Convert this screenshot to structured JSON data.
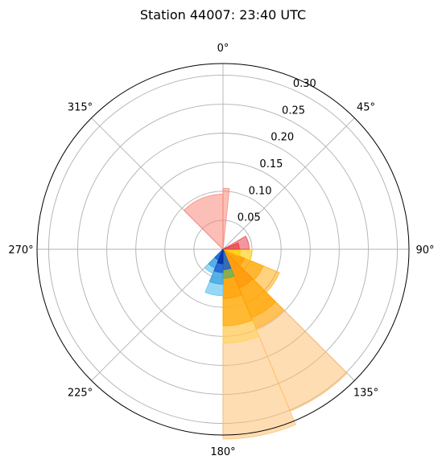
{
  "chart_data": {
    "type": "polar-bar",
    "title": "Station 44007: 23:40 UTC",
    "theta_direction": "clockwise",
    "theta_zero": "north",
    "theta_ticks": [
      0,
      45,
      90,
      135,
      180,
      225,
      270,
      315
    ],
    "theta_tick_labels": [
      "0°",
      "45°",
      "90°",
      "135°",
      "180°",
      "225°",
      "270°",
      "315°"
    ],
    "r_ticks": [
      0.05,
      0.1,
      0.15,
      0.2,
      0.25,
      0.3
    ],
    "r_tick_labels": [
      "0.05",
      "0.10",
      "0.15",
      "0.20",
      "0.25",
      "0.30"
    ],
    "rlim": [
      0,
      0.32
    ],
    "grid": true,
    "bars": [
      {
        "theta_start": 135,
        "theta_end": 157.5,
        "r": 0.302,
        "color": "#ffbb66",
        "alpha": 0.5
      },
      {
        "theta_start": 157.5,
        "theta_end": 180,
        "r": 0.327,
        "color": "#ffbb66",
        "alpha": 0.5
      },
      {
        "theta_start": 135,
        "theta_end": 157.5,
        "r": 0.148,
        "color": "#ffa500",
        "alpha": 0.5
      },
      {
        "theta_start": 157.5,
        "theta_end": 180,
        "r": 0.162,
        "color": "#ffd24d",
        "alpha": 0.5
      },
      {
        "theta_start": 112.5,
        "theta_end": 135,
        "r": 0.105,
        "color": "#ffa500",
        "alpha": 0.5
      },
      {
        "theta_start": 135,
        "theta_end": 157.5,
        "r": 0.128,
        "color": "#ffa500",
        "alpha": 0.6
      },
      {
        "theta_start": 157.5,
        "theta_end": 180,
        "r": 0.132,
        "color": "#ffa500",
        "alpha": 0.6
      },
      {
        "theta_start": 112.5,
        "theta_end": 135,
        "r": 0.075,
        "color": "#ffa500",
        "alpha": 0.6
      },
      {
        "theta_start": 90,
        "theta_end": 112.5,
        "r": 0.05,
        "color": "#ffcc00",
        "alpha": 0.6
      },
      {
        "theta_start": 135,
        "theta_end": 157.5,
        "r": 0.072,
        "color": "#ff8c00",
        "alpha": 0.5
      },
      {
        "theta_start": 157.5,
        "theta_end": 180,
        "r": 0.085,
        "color": "#ff9900",
        "alpha": 0.5
      },
      {
        "theta_start": 112.5,
        "theta_end": 135,
        "r": 0.04,
        "color": "#ff9900",
        "alpha": 0.6
      },
      {
        "theta_start": 90,
        "theta_end": 112.5,
        "r": 0.03,
        "color": "#ffcc00",
        "alpha": 0.7
      },
      {
        "theta_start": 60,
        "theta_end": 90,
        "r": 0.045,
        "color": "#e8303a",
        "alpha": 0.5
      },
      {
        "theta_start": 67.5,
        "theta_end": 90,
        "r": 0.028,
        "color": "#e8303a",
        "alpha": 0.6
      },
      {
        "theta_start": 315,
        "theta_end": 360,
        "r": 0.095,
        "color": "#fa8072",
        "alpha": 0.5
      },
      {
        "theta_start": 0,
        "theta_end": 6,
        "r": 0.105,
        "color": "#fa8072",
        "alpha": 0.5
      },
      {
        "theta_start": 180,
        "theta_end": 202.5,
        "r": 0.08,
        "color": "#6ac8f0",
        "alpha": 0.7
      },
      {
        "theta_start": 202.5,
        "theta_end": 225,
        "r": 0.045,
        "color": "#6ac8f0",
        "alpha": 0.7
      },
      {
        "theta_start": 180,
        "theta_end": 202.5,
        "r": 0.06,
        "color": "#3aa0e0",
        "alpha": 0.7
      },
      {
        "theta_start": 202.5,
        "theta_end": 225,
        "r": 0.035,
        "color": "#3aa0e0",
        "alpha": 0.7
      },
      {
        "theta_start": 157.5,
        "theta_end": 180,
        "r": 0.05,
        "color": "#3cb371",
        "alpha": 0.6
      },
      {
        "theta_start": 180,
        "theta_end": 202.5,
        "r": 0.04,
        "color": "#1e5fd0",
        "alpha": 0.8
      },
      {
        "theta_start": 157.5,
        "theta_end": 180,
        "r": 0.035,
        "color": "#1e5fd0",
        "alpha": 0.8
      },
      {
        "theta_start": 202.5,
        "theta_end": 225,
        "r": 0.02,
        "color": "#1e5fd0",
        "alpha": 0.8
      },
      {
        "theta_start": 180,
        "theta_end": 202.5,
        "r": 0.025,
        "color": "#0a2fa8",
        "alpha": 0.9
      }
    ]
  }
}
